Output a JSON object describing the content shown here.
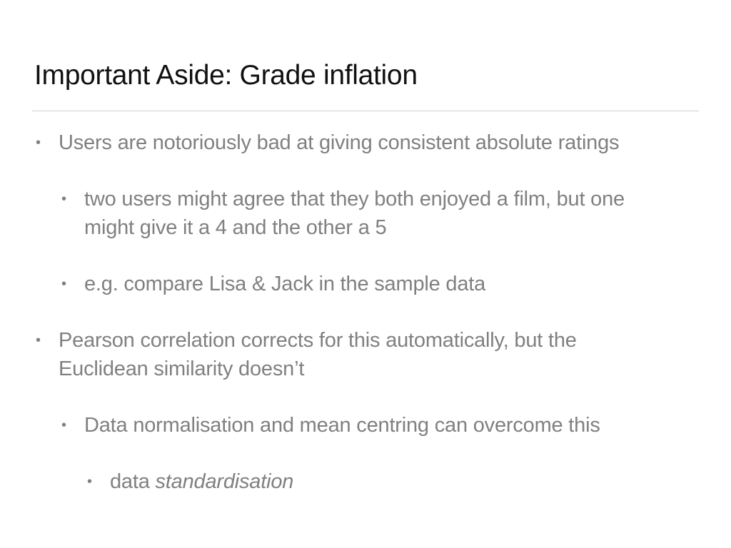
{
  "slide": {
    "title": "Important Aside: Grade inflation",
    "bullets": [
      {
        "text": "Users are notoriously bad at giving consistent absolute ratings"
      },
      {
        "text": "two users might agree that they both enjoyed a film, but one might give it a 4 and the other a 5"
      },
      {
        "text": "e.g. compare Lisa & Jack in the sample data"
      },
      {
        "text": "Pearson correlation corrects for this automatically, but the Euclidean similarity doesn’t"
      },
      {
        "text": "Data normalisation and mean centring can overcome this"
      },
      {
        "text_plain": "data ",
        "text_italic": "standardisation"
      }
    ],
    "bullet_glyph": "•"
  }
}
